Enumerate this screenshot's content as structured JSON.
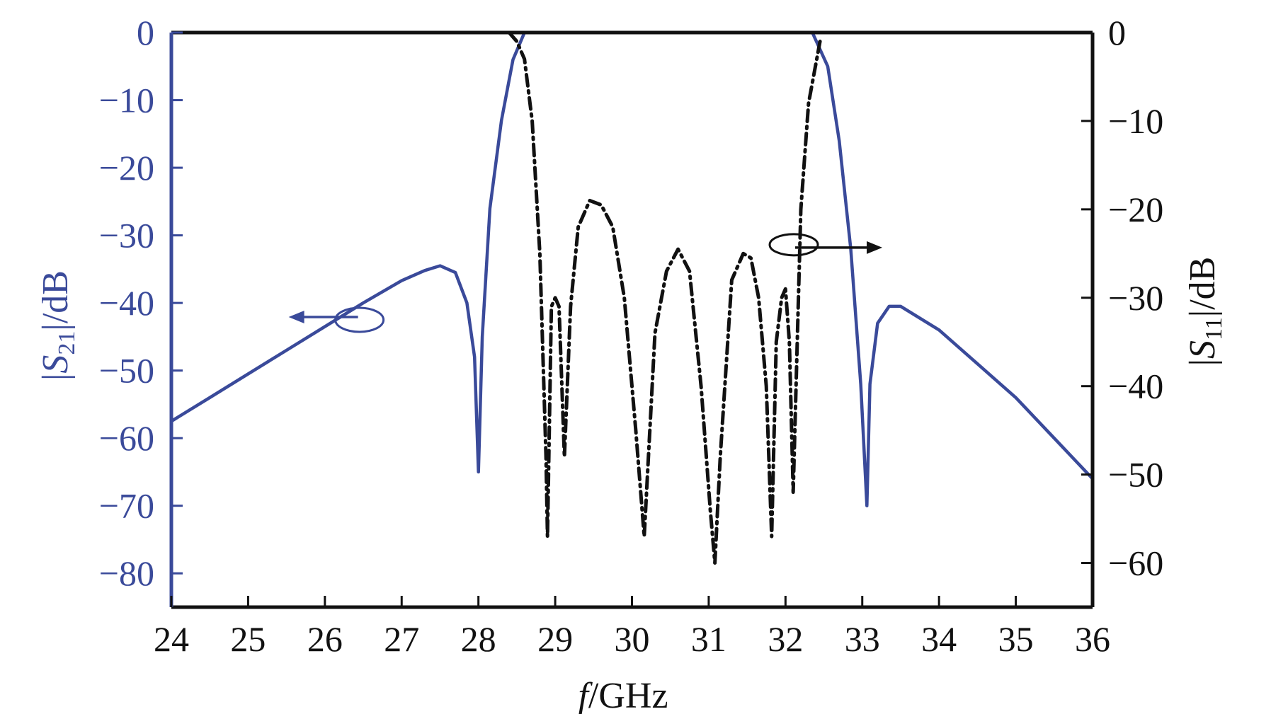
{
  "chart_data": {
    "type": "line",
    "xlabel": {
      "italic": "f",
      "rest": "/GHz"
    },
    "left_ylabel": {
      "pre": "|",
      "var": "S",
      "sub": "21",
      "post": "|/dB"
    },
    "right_ylabel": {
      "pre": "|",
      "var": "S",
      "sub": "11",
      "post": "|/dB"
    },
    "xlim": [
      24,
      36
    ],
    "left_ylim": [
      -85,
      0
    ],
    "right_ylim": [
      -65,
      0
    ],
    "x_ticks": [
      24,
      25,
      26,
      27,
      28,
      29,
      30,
      31,
      32,
      33,
      34,
      35,
      36
    ],
    "x_tick_labels": [
      "24",
      "25",
      "26",
      "27",
      "28",
      "29",
      "30",
      "31",
      "32",
      "33",
      "34",
      "35",
      "36"
    ],
    "left_ticks": [
      0,
      -10,
      -20,
      -30,
      -40,
      -50,
      -60,
      -70,
      -80
    ],
    "left_tick_labels": [
      "0",
      "−10",
      "−20",
      "−30",
      "−40",
      "−50",
      "−60",
      "−70",
      "−80"
    ],
    "right_ticks": [
      0,
      -10,
      -20,
      -30,
      -40,
      -50,
      -60
    ],
    "right_tick_labels": [
      "0",
      "−10",
      "−20",
      "−30",
      "−40",
      "−50",
      "−60"
    ],
    "colors": {
      "s21": "#3a4a9a",
      "s11": "#111111",
      "axis_left": "#3a4a9a",
      "axis_right": "#111111"
    },
    "series": [
      {
        "axis": "left",
        "style": "solid",
        "x": [
          24,
          24.5,
          25,
          25.5,
          26,
          26.5,
          27,
          27.3,
          27.5,
          27.7,
          27.85,
          27.95,
          28.0,
          28.05,
          28.15,
          28.3,
          28.45,
          28.6,
          28.75,
          32.35,
          32.55,
          32.7,
          32.85,
          32.98,
          33.06,
          33.1,
          33.2,
          33.35,
          33.5,
          34,
          34.5,
          35,
          35.5,
          36
        ],
        "y": [
          -57.5,
          -54,
          -50.5,
          -47,
          -43.5,
          -40,
          -36.7,
          -35.2,
          -34.5,
          -35.5,
          -40,
          -48,
          -65,
          -45,
          -26,
          -13,
          -4,
          0,
          0,
          0,
          -5,
          -16,
          -32,
          -52,
          -70,
          -52,
          -43,
          -40.5,
          -40.5,
          -44,
          -49,
          -54,
          -60,
          -66
        ]
      },
      {
        "axis": "right",
        "style": "dashdot",
        "x": [
          28.4,
          28.5,
          28.6,
          28.7,
          28.8,
          28.88,
          28.9,
          28.95,
          29.0,
          29.05,
          29.12,
          29.2,
          29.3,
          29.45,
          29.6,
          29.75,
          29.9,
          30.05,
          30.16,
          30.3,
          30.45,
          30.6,
          30.75,
          30.9,
          31.02,
          31.08,
          31.15,
          31.3,
          31.45,
          31.55,
          31.65,
          31.75,
          31.82,
          31.88,
          31.95,
          32.0,
          32.05,
          32.1,
          32.2,
          32.3,
          32.45
        ],
        "y": [
          0,
          -1,
          -3,
          -10,
          -25,
          -48,
          -57,
          -31,
          -30,
          -31,
          -48,
          -31,
          -22,
          -19,
          -19.5,
          -22,
          -30,
          -45,
          -57,
          -34,
          -27,
          -24.5,
          -27,
          -40,
          -54,
          -60,
          -48,
          -28,
          -25,
          -25.5,
          -30,
          -40,
          -57,
          -35,
          -30,
          -29,
          -35,
          -52,
          -20,
          -8,
          -1
        ]
      }
    ],
    "annotations": [
      {
        "label": "s21-marker",
        "x": 26.45,
        "y_left": -42.5,
        "arrow": "left"
      },
      {
        "label": "s11-marker",
        "x": 32.2,
        "y_right": -24,
        "arrow": "right"
      }
    ]
  }
}
